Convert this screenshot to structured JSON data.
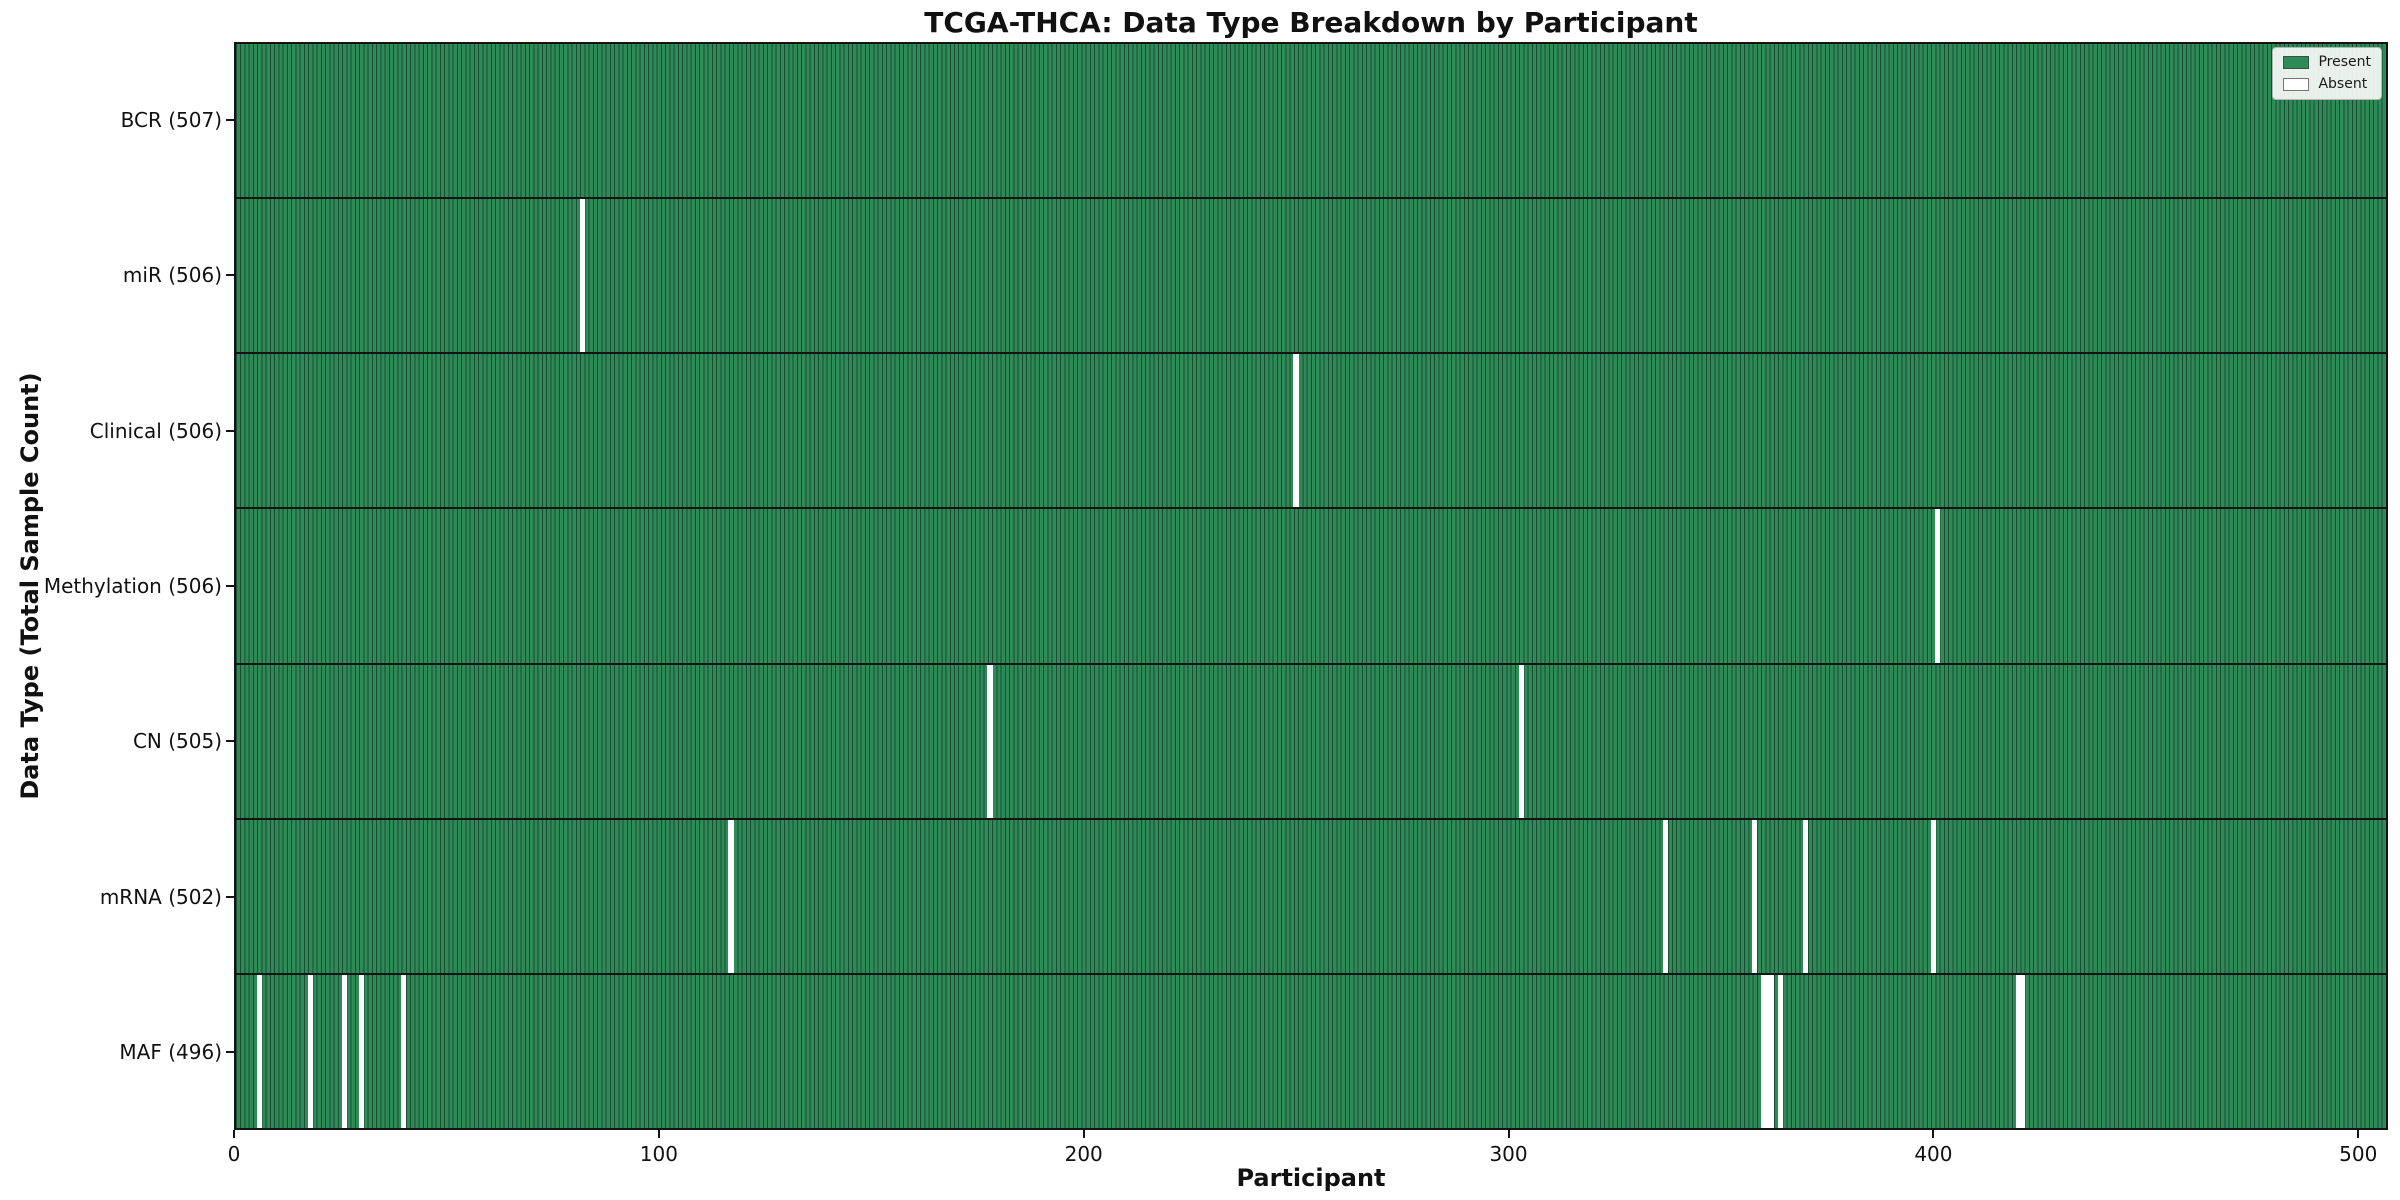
{
  "chart_data": {
    "type": "heatmap",
    "title": "TCGA-THCA: Data Type Breakdown by Participant",
    "xlabel": "Participant",
    "ylabel": "Data Type (Total Sample Count)",
    "participants_total": 507,
    "xlim": [
      0,
      507
    ],
    "x_ticks": [
      0,
      100,
      200,
      300,
      400,
      500
    ],
    "grid": false,
    "legend_position": "upper right",
    "legend": [
      {
        "label": "Present",
        "color": "#2e8b57"
      },
      {
        "label": "Absent",
        "color": "#ffffff"
      }
    ],
    "colors": {
      "present": "#2e8b57",
      "cell_edge": "#1b4d33",
      "absent": "#ffffff",
      "divider": "#141414",
      "spine": "#141414"
    },
    "rows": [
      {
        "label": "BCR (507)",
        "data_type": "BCR",
        "present_count": 507,
        "absent_participants": []
      },
      {
        "label": "miR (506)",
        "data_type": "miR",
        "present_count": 506,
        "absent_participants": [
          81
        ]
      },
      {
        "label": "Clinical (506)",
        "data_type": "Clinical",
        "present_count": 506,
        "absent_participants": [
          249
        ]
      },
      {
        "label": "Methylation (506)",
        "data_type": "Methylation",
        "present_count": 506,
        "absent_participants": [
          400
        ]
      },
      {
        "label": "CN (505)",
        "data_type": "CN",
        "present_count": 505,
        "absent_participants": [
          177,
          302
        ]
      },
      {
        "label": "mRNA (502)",
        "data_type": "mRNA",
        "present_count": 502,
        "absent_participants": [
          116,
          336,
          357,
          369,
          399
        ]
      },
      {
        "label": "MAF (496)",
        "data_type": "MAF",
        "present_count": 496,
        "absent_participants": [
          5,
          17,
          25,
          29,
          39,
          359,
          360,
          361,
          363,
          419,
          420
        ]
      }
    ]
  }
}
